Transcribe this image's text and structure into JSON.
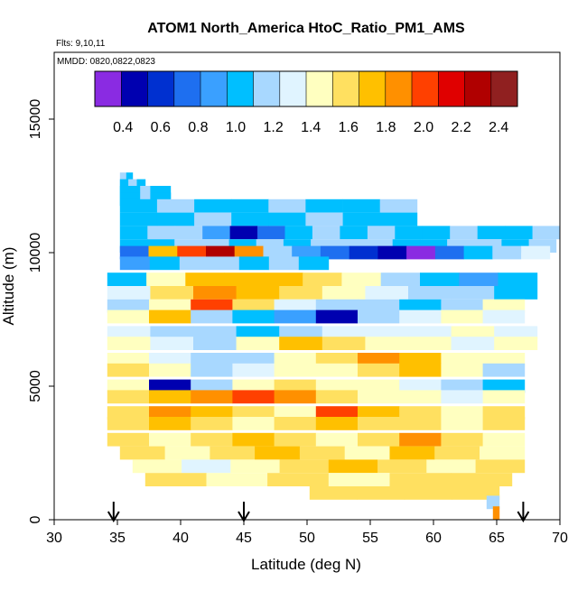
{
  "chart_data": {
    "type": "heatmap",
    "title": "ATOM1 North_America HtoC_Ratio_PM1_AMS",
    "flights_label": "Flts: 9,10,11",
    "dates_label": "MMDD: 0820,0822,0823",
    "xlabel": "Latitude (deg N)",
    "ylabel": "Altitude (m)",
    "xlim": [
      30,
      70
    ],
    "ylim": [
      0,
      17500
    ],
    "x_ticks": [
      30,
      35,
      40,
      45,
      50,
      55,
      60,
      65,
      70
    ],
    "y_ticks": [
      0,
      5000,
      10000,
      15000
    ],
    "colorbar": {
      "range": [
        0.25,
        2.5
      ],
      "ticks": [
        "0.4",
        "0.6",
        "0.8",
        "1.0",
        "1.2",
        "1.4",
        "1.6",
        "1.8",
        "2.0",
        "2.2",
        "2.4"
      ],
      "tick_values": [
        0.4,
        0.6,
        0.8,
        1.0,
        1.2,
        1.4,
        1.6,
        1.8,
        2.0,
        2.2,
        2.4
      ],
      "colors": [
        "#8a2be2",
        "#0000b0",
        "#0030d0",
        "#1e6ff0",
        "#3aa0ff",
        "#00bfff",
        "#a8d8ff",
        "#e0f4ff",
        "#ffffc0",
        "#ffe060",
        "#ffc000",
        "#ff9000",
        "#ff4000",
        "#e00000",
        "#b00000",
        "#902020"
      ]
    },
    "arrows_latitude": [
      34.7,
      45.0,
      67.1
    ],
    "rows": [
      {
        "alt": 12750,
        "x0": 35.2,
        "x1": 36.2,
        "values": [
          1.1,
          1.0
        ]
      },
      {
        "alt": 12500,
        "x0": 35.2,
        "x1": 37.2,
        "values": [
          1.05,
          1.1,
          1.0
        ]
      },
      {
        "alt": 12250,
        "x0": 35.2,
        "x1": 39.2,
        "values": [
          1.0,
          1.0,
          1.1,
          1.05,
          1.0
        ]
      },
      {
        "alt": 12000,
        "x0": 35.2,
        "x1": 39.2,
        "values": [
          1.05,
          1.0,
          1.1,
          1.05,
          1.0
        ]
      },
      {
        "alt": 11750,
        "x0": 35.2,
        "x1": 58.7,
        "values": [
          1.0,
          1.1,
          1.05,
          1.0,
          1.1,
          1.05,
          1.0,
          1.1
        ]
      },
      {
        "alt": 11250,
        "x0": 35.2,
        "x1": 58.7,
        "values": [
          1.05,
          1.0,
          1.1,
          1.0,
          1.05,
          1.1,
          1.0,
          1.05
        ]
      },
      {
        "alt": 10750,
        "x0": 35.2,
        "x1": 70.0,
        "values": [
          1.0,
          1.1,
          1.15,
          0.85,
          0.5,
          0.7,
          1.05,
          1.1,
          1.0,
          1.1,
          1.05,
          1.0,
          1.1,
          1.05,
          1.0,
          1.1
        ]
      },
      {
        "alt": 10250,
        "x0": 35.2,
        "x1": 69.7,
        "values": [
          1.0,
          1.05,
          1.1,
          1.2,
          1.0,
          1.1,
          1.05,
          1.1,
          1.2,
          1.1,
          1.0,
          1.05,
          1.1,
          1.2,
          1.0,
          1.1
        ]
      },
      {
        "alt": 10000,
        "x0": 35.2,
        "x1": 69.2,
        "values": [
          0.7,
          1.7,
          2.0,
          2.3,
          1.8,
          1.2,
          0.9,
          0.8,
          0.6,
          0.4,
          0.3,
          0.8,
          1.0,
          1.2,
          1.3
        ]
      },
      {
        "alt": 9600,
        "x0": 35.2,
        "x1": 51.7,
        "values": [
          0.9,
          1.0,
          1.1,
          1.2,
          1.0,
          1.1,
          1.0
        ]
      },
      {
        "alt": 9000,
        "x0": 34.2,
        "x1": 68.2,
        "values": [
          1.0,
          1.4,
          1.7,
          1.75,
          1.7,
          1.6,
          1.4,
          1.2,
          1.0,
          0.9,
          1.0
        ]
      },
      {
        "alt": 8500,
        "x0": 34.2,
        "x1": 68.2,
        "values": [
          1.3,
          1.6,
          1.8,
          1.7,
          1.65,
          1.5,
          1.3,
          1.2,
          1.1,
          1.0
        ]
      },
      {
        "alt": 8000,
        "x0": 34.2,
        "x1": 67.2,
        "values": [
          1.2,
          1.4,
          2.0,
          1.6,
          1.3,
          1.2,
          1.1,
          1.0,
          1.2,
          1.4
        ]
      },
      {
        "alt": 7600,
        "x0": 34.2,
        "x1": 67.2,
        "values": [
          1.5,
          1.7,
          1.2,
          1.0,
          0.9,
          0.5,
          1.1,
          1.3,
          1.4,
          1.3
        ]
      },
      {
        "alt": 7000,
        "x0": 34.2,
        "x1": 68.2,
        "values": [
          1.3,
          1.2,
          1.1,
          1.0,
          1.2,
          1.35,
          1.3,
          1.25,
          1.4,
          1.3
        ]
      },
      {
        "alt": 6600,
        "x0": 34.2,
        "x1": 68.2,
        "values": [
          1.4,
          1.3,
          1.2,
          1.5,
          1.7,
          1.6,
          1.5,
          1.4,
          1.3,
          1.4
        ]
      },
      {
        "alt": 6000,
        "x0": 34.2,
        "x1": 67.2,
        "values": [
          1.5,
          1.3,
          1.1,
          1.2,
          1.4,
          1.6,
          1.8,
          1.7,
          1.5,
          1.4
        ]
      },
      {
        "alt": 5600,
        "x0": 34.2,
        "x1": 67.2,
        "values": [
          1.6,
          1.4,
          1.2,
          1.3,
          1.4,
          1.5,
          1.6,
          1.7,
          1.5,
          1.2
        ]
      },
      {
        "alt": 5000,
        "x0": 34.2,
        "x1": 67.2,
        "values": [
          1.5,
          0.5,
          1.2,
          1.4,
          1.6,
          1.5,
          1.4,
          1.3,
          1.1,
          1.0
        ]
      },
      {
        "alt": 4600,
        "x0": 34.2,
        "x1": 67.2,
        "values": [
          1.6,
          1.7,
          1.8,
          2.0,
          1.8,
          1.6,
          1.5,
          1.4,
          1.3,
          1.4
        ]
      },
      {
        "alt": 4000,
        "x0": 34.2,
        "x1": 67.2,
        "values": [
          1.6,
          1.8,
          1.7,
          1.6,
          1.5,
          2.0,
          1.7,
          1.6,
          1.5,
          1.6
        ]
      },
      {
        "alt": 3600,
        "x0": 34.2,
        "x1": 67.2,
        "values": [
          1.6,
          1.7,
          1.6,
          1.5,
          1.6,
          1.7,
          1.6,
          1.6,
          1.5,
          1.6
        ]
      },
      {
        "alt": 3000,
        "x0": 34.2,
        "x1": 67.2,
        "values": [
          1.6,
          1.5,
          1.6,
          1.7,
          1.6,
          1.5,
          1.6,
          1.8,
          1.6,
          1.5
        ]
      },
      {
        "alt": 2500,
        "x0": 35.2,
        "x1": 67.2,
        "values": [
          1.6,
          1.5,
          1.6,
          1.7,
          1.6,
          1.5,
          1.7,
          1.6,
          1.5
        ]
      },
      {
        "alt": 2000,
        "x0": 36.2,
        "x1": 67.2,
        "values": [
          1.5,
          1.3,
          1.4,
          1.6,
          1.7,
          1.6,
          1.5,
          1.6
        ]
      },
      {
        "alt": 1500,
        "x0": 37.2,
        "x1": 66.2,
        "values": [
          1.6,
          1.5,
          1.6,
          1.5,
          1.6,
          1.6
        ]
      },
      {
        "alt": 1000,
        "x0": 50.2,
        "x1": 65.2,
        "values": [
          1.6,
          1.6,
          1.55,
          1.6
        ]
      },
      {
        "alt": 650,
        "x0": 64.2,
        "x1": 65.2,
        "values": [
          1.2
        ]
      },
      {
        "alt": 250,
        "x0": 64.7,
        "x1": 65.2,
        "values": [
          1.9
        ]
      }
    ]
  }
}
